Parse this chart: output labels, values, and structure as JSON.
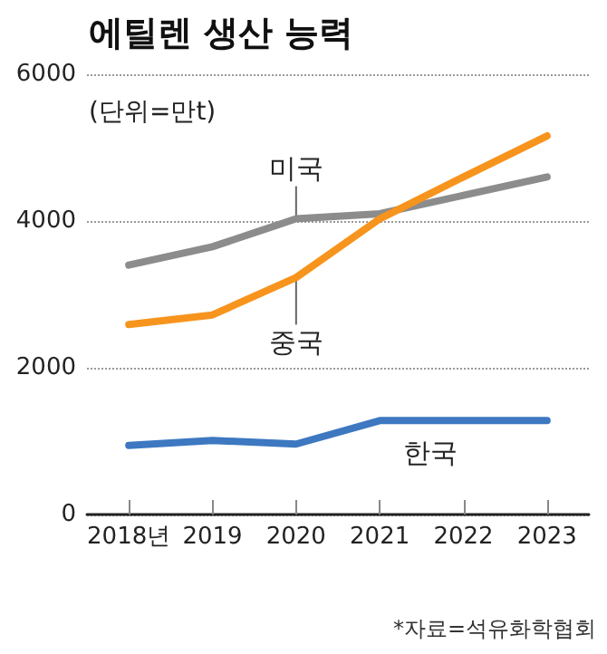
{
  "chart_data": {
    "type": "line",
    "title": "에틸렌 생산 능력",
    "subtitle": "(단위=만t)",
    "categories": [
      "2018년",
      "2019",
      "2020",
      "2021",
      "2022",
      "2023"
    ],
    "series": [
      {
        "name": "미국",
        "color": "#8c8c8c",
        "values": [
          3400,
          3650,
          4030,
          4100,
          4350,
          4600
        ]
      },
      {
        "name": "중국",
        "color": "#f7941d",
        "values": [
          2590,
          2720,
          3230,
          4030,
          4600,
          5160
        ]
      },
      {
        "name": "한국",
        "color": "#3d78c1",
        "values": [
          940,
          1010,
          960,
          1280,
          1280,
          1280
        ]
      }
    ],
    "ylim": [
      0,
      6000
    ],
    "yticks": [
      0,
      2000,
      4000,
      6000
    ],
    "grid": "y",
    "marker": "none",
    "annotations": [
      "*자료=석유화학협회"
    ]
  }
}
